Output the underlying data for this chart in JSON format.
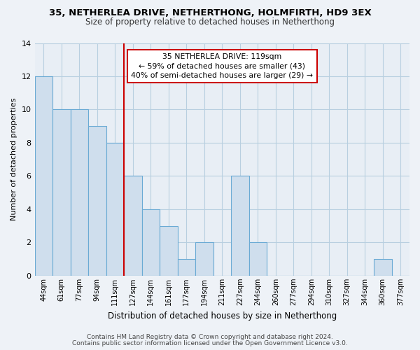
{
  "title": "35, NETHERLEA DRIVE, NETHERTHONG, HOLMFIRTH, HD9 3EX",
  "subtitle": "Size of property relative to detached houses in Netherthong",
  "xlabel": "Distribution of detached houses by size in Netherthong",
  "ylabel": "Number of detached properties",
  "footer_lines": [
    "Contains HM Land Registry data © Crown copyright and database right 2024.",
    "Contains public sector information licensed under the Open Government Licence v3.0."
  ],
  "bin_labels": [
    "44sqm",
    "61sqm",
    "77sqm",
    "94sqm",
    "111sqm",
    "127sqm",
    "144sqm",
    "161sqm",
    "177sqm",
    "194sqm",
    "211sqm",
    "227sqm",
    "244sqm",
    "260sqm",
    "277sqm",
    "294sqm",
    "310sqm",
    "327sqm",
    "344sqm",
    "360sqm",
    "377sqm"
  ],
  "bin_counts": [
    12,
    10,
    10,
    9,
    8,
    6,
    4,
    3,
    1,
    2,
    0,
    6,
    2,
    0,
    0,
    0,
    0,
    0,
    0,
    1,
    0
  ],
  "bar_color": "#cfdeed",
  "bar_edge_color": "#6aaad4",
  "annotation_title": "35 NETHERLEA DRIVE: 119sqm",
  "annotation_line1": "← 59% of detached houses are smaller (43)",
  "annotation_line2": "40% of semi-detached houses are larger (29) →",
  "annotation_box_color": "#ffffff",
  "annotation_box_edge_color": "#cc0000",
  "vline_color": "#cc0000",
  "vline_x_index": 4.5,
  "ylim": [
    0,
    14
  ],
  "yticks": [
    0,
    2,
    4,
    6,
    8,
    10,
    12,
    14
  ],
  "bg_color": "#eef2f7",
  "plot_bg_color": "#e8eef5",
  "grid_color": "#b8cfe0"
}
